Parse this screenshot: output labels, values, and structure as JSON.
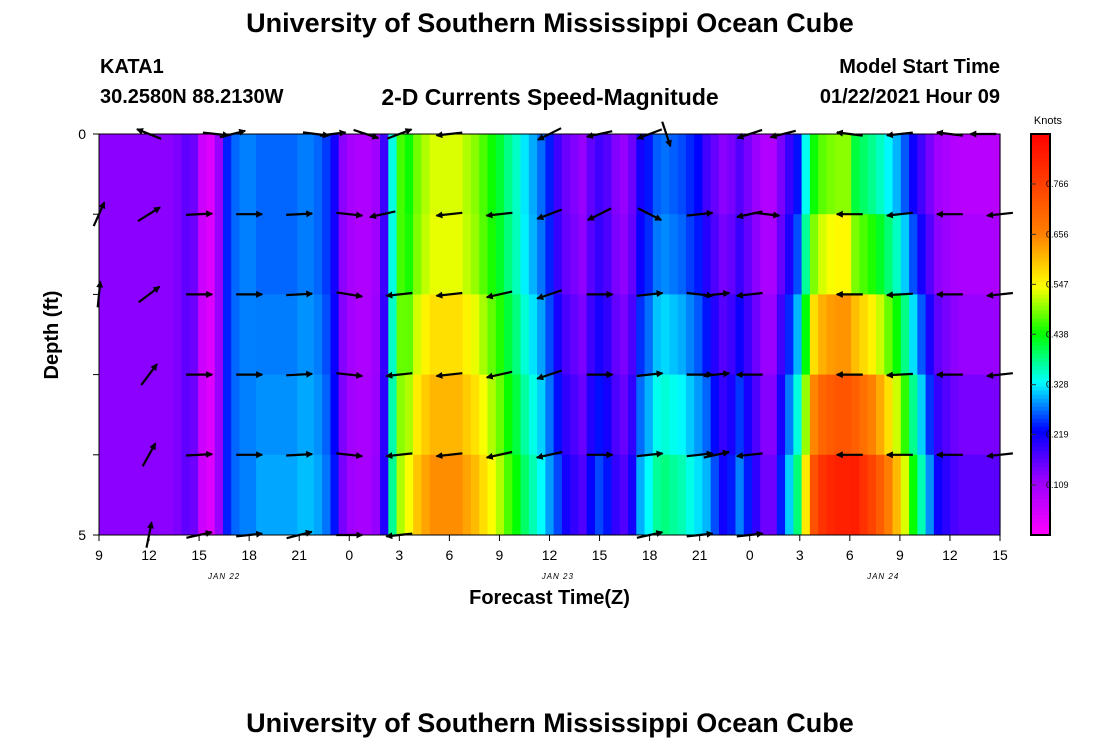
{
  "header": {
    "title_top": "University of Southern Mississippi Ocean Cube",
    "station_id": "KATA1",
    "station_coords": "30.2580N 88.2130W",
    "chart_title": "2-D Currents Speed-Magnitude",
    "model_start_label": "Model Start Time",
    "model_start_value": "01/22/2021 Hour 09",
    "title_bottom": "University of Southern Mississippi Ocean Cube"
  },
  "chart_data": {
    "type": "heatmap",
    "title": "2-D Currents Speed-Magnitude",
    "xlabel": "Forecast Time(Z)",
    "ylabel": "Depth (ft)",
    "units": "Knots",
    "x_start_hours": 9,
    "x_end_hours": 63,
    "x_tick_labels": [
      "9",
      "12",
      "15",
      "18",
      "21",
      "0",
      "3",
      "6",
      "9",
      "12",
      "15",
      "18",
      "21",
      "0",
      "3",
      "6",
      "9",
      "12",
      "15"
    ],
    "date_labels": [
      {
        "label": "JAN  22",
        "hour": 16.5
      },
      {
        "label": "JAN  23",
        "hour": 36.5
      },
      {
        "label": "JAN  24",
        "hour": 56
      }
    ],
    "y_tick_labels": [
      "0",
      "",
      "",
      "",
      "",
      "5"
    ],
    "ylim": [
      0,
      5
    ],
    "colorbar": {
      "label": "Knots",
      "min": 0,
      "max": 0.875,
      "ticks": [
        "0.109",
        "0.219",
        "0.328",
        "0.438",
        "0.547",
        "0.656",
        "0.766"
      ],
      "tick_values": [
        0.109,
        0.219,
        0.328,
        0.438,
        0.547,
        0.656,
        0.766
      ]
    },
    "speed_by_hour": [
      0.13,
      0.13,
      0.13,
      0.13,
      0.13,
      0.13,
      0.13,
      0.13,
      0.13,
      0.14,
      0.16,
      0.15,
      0.06,
      0.04,
      0.12,
      0.24,
      0.27,
      0.28,
      0.28,
      0.29,
      0.29,
      0.29,
      0.29,
      0.29,
      0.3,
      0.3,
      0.29,
      0.27,
      0.23,
      0.14,
      0.11,
      0.1,
      0.1,
      0.12,
      0.2,
      0.37,
      0.5,
      0.52,
      0.57,
      0.6,
      0.62,
      0.62,
      0.62,
      0.62,
      0.6,
      0.58,
      0.55,
      0.52,
      0.49,
      0.45,
      0.42,
      0.38,
      0.35,
      0.32,
      0.28,
      0.24,
      0.2,
      0.18,
      0.16,
      0.21,
      0.24,
      0.22,
      0.18,
      0.16,
      0.2,
      0.28,
      0.31,
      0.35,
      0.36,
      0.35,
      0.34,
      0.32,
      0.3,
      0.28,
      0.24,
      0.2,
      0.22,
      0.26,
      0.22,
      0.18,
      0.14,
      0.14,
      0.22,
      0.29,
      0.36,
      0.52,
      0.68,
      0.73,
      0.75,
      0.76,
      0.76,
      0.75,
      0.72,
      0.69,
      0.65,
      0.6,
      0.55,
      0.48,
      0.4,
      0.33,
      0.26,
      0.2,
      0.18,
      0.16,
      0.15,
      0.15,
      0.15,
      0.15,
      0.15
    ],
    "depth_factors": [
      [
        1.0,
        1.0,
        1.0,
        1.0,
        1.0
      ],
      [
        0.93,
        0.93,
        0.96,
        0.99,
        1.02
      ],
      [
        0.85,
        0.86,
        0.92,
        0.98,
        1.04
      ],
      [
        0.76,
        0.79,
        0.88,
        0.97,
        1.07
      ],
      [
        0.65,
        0.72,
        0.84,
        0.96,
        1.08
      ],
      [
        0.55,
        0.65,
        0.8,
        0.95,
        1.1
      ]
    ],
    "arrow_rows": [
      {
        "depth": 0,
        "arrows": [
          {
            "h": 12,
            "dx": -0.5,
            "dy": -0.2
          },
          {
            "h": 16,
            "dx": 0.9,
            "dy": 0.1
          },
          {
            "h": 17,
            "dx": 0.8,
            "dy": -0.2
          },
          {
            "h": 22,
            "dx": 0.8,
            "dy": 0.1
          },
          {
            "h": 23,
            "dx": 0.8,
            "dy": -0.1
          },
          {
            "h": 25,
            "dx": 0.9,
            "dy": 0.3
          },
          {
            "h": 27,
            "dx": 0.8,
            "dy": -0.3
          },
          {
            "h": 30,
            "dx": -0.9,
            "dy": 0.1
          },
          {
            "h": 36,
            "dx": -0.8,
            "dy": 0.4
          },
          {
            "h": 39,
            "dx": -0.9,
            "dy": 0.2
          },
          {
            "h": 42,
            "dx": -0.8,
            "dy": 0.3
          },
          {
            "h": 43,
            "dx": 0.3,
            "dy": 0.9
          },
          {
            "h": 48,
            "dx": -0.6,
            "dy": 0.2
          },
          {
            "h": 50,
            "dx": -0.8,
            "dy": 0.2
          },
          {
            "h": 54,
            "dx": -0.8,
            "dy": -0.1
          },
          {
            "h": 57,
            "dx": -0.9,
            "dy": 0.1
          },
          {
            "h": 60,
            "dx": -0.8,
            "dy": -0.1
          },
          {
            "h": 62,
            "dx": -0.8,
            "dy": 0
          }
        ]
      },
      {
        "depth": 1,
        "arrows": [
          {
            "h": 9,
            "dx": 0.4,
            "dy": -0.9
          },
          {
            "h": 12,
            "dx": 0.8,
            "dy": -0.5
          },
          {
            "h": 15,
            "dx": 0.9,
            "dy": -0.05
          },
          {
            "h": 18,
            "dx": 0.9,
            "dy": 0
          },
          {
            "h": 21,
            "dx": 0.9,
            "dy": -0.05
          },
          {
            "h": 24,
            "dx": 0.9,
            "dy": 0.1
          },
          {
            "h": 26,
            "dx": -0.9,
            "dy": 0.2
          },
          {
            "h": 30,
            "dx": -0.9,
            "dy": 0.1
          },
          {
            "h": 33,
            "dx": -0.9,
            "dy": 0.1
          },
          {
            "h": 36,
            "dx": -0.8,
            "dy": 0.3
          },
          {
            "h": 39,
            "dx": -0.8,
            "dy": 0.4
          },
          {
            "h": 42,
            "dx": 0.8,
            "dy": 0.4
          },
          {
            "h": 45,
            "dx": 0.9,
            "dy": -0.1
          },
          {
            "h": 48,
            "dx": -0.9,
            "dy": 0.2
          },
          {
            "h": 49,
            "dx": 0.9,
            "dy": 0.1
          },
          {
            "h": 54,
            "dx": -0.9,
            "dy": 0
          },
          {
            "h": 57,
            "dx": -0.9,
            "dy": 0.1
          },
          {
            "h": 60,
            "dx": -0.9,
            "dy": 0
          },
          {
            "h": 63,
            "dx": -0.9,
            "dy": 0.1
          }
        ]
      },
      {
        "depth": 2,
        "arrows": [
          {
            "h": 9,
            "dx": 0.1,
            "dy": -1.0
          },
          {
            "h": 12,
            "dx": 0.8,
            "dy": -0.6
          },
          {
            "h": 15,
            "dx": 0.9,
            "dy": 0
          },
          {
            "h": 18,
            "dx": 0.9,
            "dy": 0
          },
          {
            "h": 21,
            "dx": 0.9,
            "dy": -0.05
          },
          {
            "h": 24,
            "dx": 0.9,
            "dy": 0.15
          },
          {
            "h": 27,
            "dx": -0.9,
            "dy": 0.1
          },
          {
            "h": 30,
            "dx": -0.9,
            "dy": 0.1
          },
          {
            "h": 33,
            "dx": -0.9,
            "dy": 0.2
          },
          {
            "h": 36,
            "dx": -0.9,
            "dy": 0.3
          },
          {
            "h": 39,
            "dx": 0.9,
            "dy": 0
          },
          {
            "h": 42,
            "dx": 0.9,
            "dy": -0.1
          },
          {
            "h": 45,
            "dx": 0.9,
            "dy": 0.1
          },
          {
            "h": 46,
            "dx": 0.9,
            "dy": -0.1
          },
          {
            "h": 48,
            "dx": -0.9,
            "dy": 0.1
          },
          {
            "h": 54,
            "dx": -0.9,
            "dy": 0
          },
          {
            "h": 57,
            "dx": -0.9,
            "dy": 0.05
          },
          {
            "h": 60,
            "dx": -0.9,
            "dy": 0
          },
          {
            "h": 63,
            "dx": -0.9,
            "dy": 0.1
          }
        ]
      },
      {
        "depth": 3,
        "arrows": [
          {
            "h": 12,
            "dx": 0.6,
            "dy": -0.8
          },
          {
            "h": 15,
            "dx": 0.9,
            "dy": 0
          },
          {
            "h": 18,
            "dx": 0.9,
            "dy": 0
          },
          {
            "h": 21,
            "dx": 0.9,
            "dy": -0.05
          },
          {
            "h": 24,
            "dx": 0.9,
            "dy": 0.1
          },
          {
            "h": 27,
            "dx": -0.9,
            "dy": 0.1
          },
          {
            "h": 30,
            "dx": -0.9,
            "dy": 0.1
          },
          {
            "h": 33,
            "dx": -0.9,
            "dy": 0.2
          },
          {
            "h": 36,
            "dx": -0.9,
            "dy": 0.3
          },
          {
            "h": 39,
            "dx": 0.9,
            "dy": 0
          },
          {
            "h": 42,
            "dx": 0.9,
            "dy": -0.1
          },
          {
            "h": 45,
            "dx": 0.9,
            "dy": 0
          },
          {
            "h": 46,
            "dx": 0.9,
            "dy": -0.1
          },
          {
            "h": 48,
            "dx": -0.9,
            "dy": 0
          },
          {
            "h": 54,
            "dx": -0.9,
            "dy": 0
          },
          {
            "h": 57,
            "dx": -0.9,
            "dy": 0.05
          },
          {
            "h": 60,
            "dx": -0.9,
            "dy": 0
          },
          {
            "h": 63,
            "dx": -0.9,
            "dy": 0.1
          }
        ]
      },
      {
        "depth": 4,
        "arrows": [
          {
            "h": 12,
            "dx": 0.5,
            "dy": -0.9
          },
          {
            "h": 15,
            "dx": 0.9,
            "dy": -0.05
          },
          {
            "h": 18,
            "dx": 0.9,
            "dy": 0
          },
          {
            "h": 21,
            "dx": 0.9,
            "dy": -0.05
          },
          {
            "h": 24,
            "dx": 0.9,
            "dy": 0.1
          },
          {
            "h": 27,
            "dx": -0.9,
            "dy": 0.1
          },
          {
            "h": 30,
            "dx": -0.9,
            "dy": 0.1
          },
          {
            "h": 33,
            "dx": -0.9,
            "dy": 0.2
          },
          {
            "h": 36,
            "dx": -0.9,
            "dy": 0.2
          },
          {
            "h": 39,
            "dx": 0.9,
            "dy": 0
          },
          {
            "h": 42,
            "dx": 0.9,
            "dy": -0.1
          },
          {
            "h": 45,
            "dx": 0.9,
            "dy": -0.1
          },
          {
            "h": 46,
            "dx": 0.9,
            "dy": -0.2
          },
          {
            "h": 48,
            "dx": -0.9,
            "dy": 0.1
          },
          {
            "h": 54,
            "dx": -0.9,
            "dy": 0
          },
          {
            "h": 57,
            "dx": -0.9,
            "dy": 0
          },
          {
            "h": 60,
            "dx": -0.9,
            "dy": 0
          },
          {
            "h": 63,
            "dx": -0.9,
            "dy": 0.1
          }
        ]
      },
      {
        "depth": 5,
        "arrows": [
          {
            "h": 12,
            "dx": 0.2,
            "dy": -1.0
          },
          {
            "h": 15,
            "dx": 0.9,
            "dy": -0.2
          },
          {
            "h": 18,
            "dx": 0.9,
            "dy": -0.1
          },
          {
            "h": 21,
            "dx": 0.8,
            "dy": -0.2
          },
          {
            "h": 24,
            "dx": 0.9,
            "dy": 0
          },
          {
            "h": 27,
            "dx": -0.9,
            "dy": 0.1
          },
          {
            "h": 42,
            "dx": 0.9,
            "dy": -0.2
          },
          {
            "h": 45,
            "dx": 0.9,
            "dy": -0.1
          },
          {
            "h": 48,
            "dx": 0.9,
            "dy": -0.1
          }
        ]
      }
    ]
  }
}
